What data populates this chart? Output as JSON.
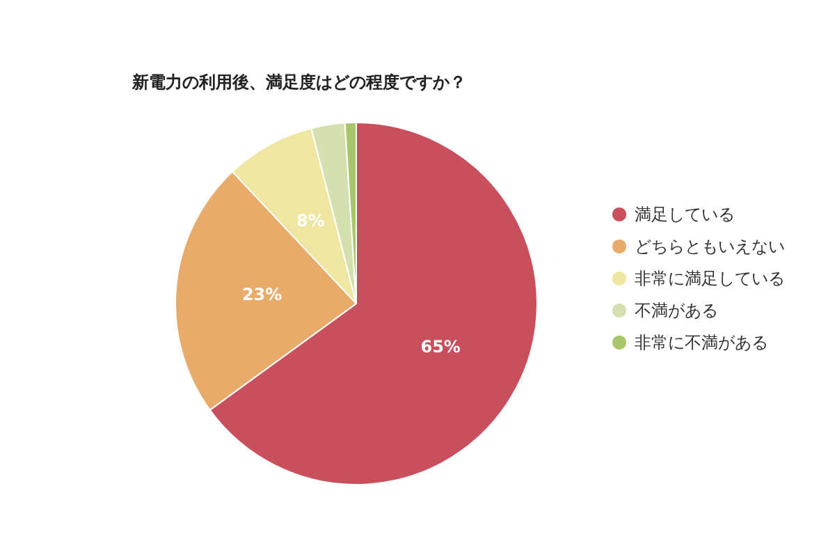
{
  "chart_data": {
    "type": "pie",
    "title": "新電力の利用後、満足度はどの程度ですか？",
    "categories": [
      "満足している",
      "どちらともいえない",
      "非常に満足している",
      "不満がある",
      "非常に不満がある"
    ],
    "values": [
      65,
      23,
      8,
      3,
      1
    ],
    "colors": [
      "#c94f5c",
      "#e8ab6a",
      "#eee6a1",
      "#d5e0b0",
      "#a8c66b"
    ],
    "value_labels": [
      "65%",
      "23%",
      "8%",
      null,
      null
    ],
    "legend": "right"
  }
}
